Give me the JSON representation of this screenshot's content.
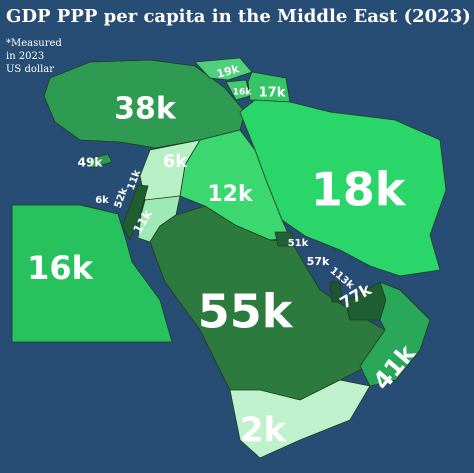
{
  "title": "GDP PPP per capita in the Middle East (2023)",
  "note": [
    "*Measured",
    "in 2023",
    "US dollar"
  ],
  "labels": [
    "38k",
    "19k",
    "16k",
    "17k",
    "49k",
    "6k",
    "12k",
    "18k",
    "6k",
    "52k",
    "11k",
    "11k",
    "16k",
    "51k",
    "57k",
    "113k",
    "77k",
    "55k",
    "41k",
    "2k"
  ]
}
